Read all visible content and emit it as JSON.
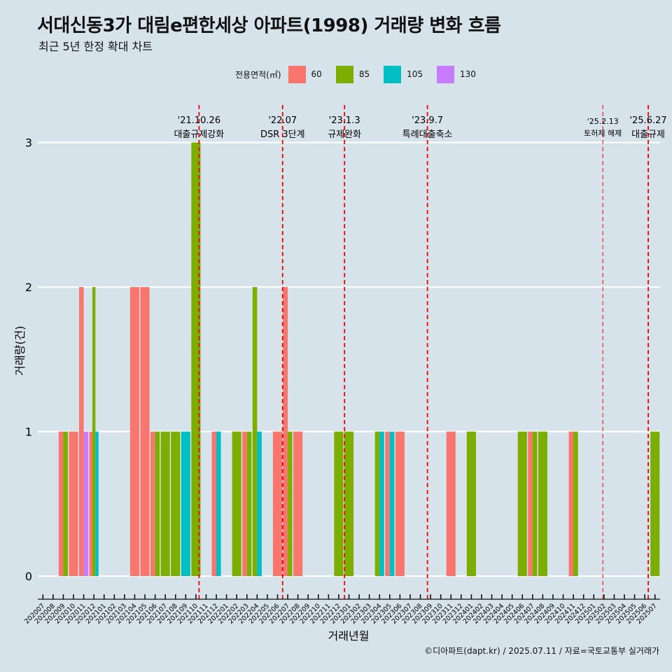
{
  "title": "서대신동3가 대림e편한세상 아파트(1998) 거래량 변화 흐름",
  "subtitle": "최근 5년 한정 확대 차트",
  "caption": "©디아파트(dapt.kr) / 2025.07.11 / 자료=국토교통부 실거래가",
  "legend": {
    "title": "전용면적(㎡)",
    "items": [
      {
        "label": "60",
        "color": "#f8766d"
      },
      {
        "label": "85",
        "color": "#7cae00"
      },
      {
        "label": "105",
        "color": "#00bfc4"
      },
      {
        "label": "130",
        "color": "#c77cff"
      }
    ]
  },
  "chart_data": {
    "type": "bar",
    "xlabel": "거래년월",
    "ylabel": "거래량(건)",
    "ylim": [
      0,
      3
    ],
    "yticks": [
      0,
      1,
      2,
      3
    ],
    "grid": true,
    "legend_position": "top",
    "categories": [
      "202007",
      "202008",
      "202009",
      "202010",
      "202011",
      "202012",
      "202101",
      "202102",
      "202103",
      "202104",
      "202105",
      "202106",
      "202107",
      "202108",
      "202109",
      "202110",
      "202111",
      "202112",
      "202201",
      "202202",
      "202203",
      "202204",
      "202205",
      "202206",
      "202207",
      "202208",
      "202209",
      "202210",
      "202211",
      "202212",
      "202301",
      "202302",
      "202303",
      "202304",
      "202305",
      "202306",
      "202307",
      "202308",
      "202309",
      "202310",
      "202311",
      "202312",
      "202401",
      "202402",
      "202403",
      "202404",
      "202405",
      "202406",
      "202407",
      "202408",
      "202409",
      "202410",
      "202411",
      "202412",
      "202501",
      "202502",
      "202503",
      "202504",
      "202505",
      "202506",
      "202507"
    ],
    "series": [
      {
        "name": "60",
        "color": "#f8766d",
        "values": [
          0,
          0,
          1,
          1,
          2,
          1,
          0,
          0,
          0,
          2,
          2,
          1,
          0,
          0,
          0,
          0,
          0,
          1,
          0,
          0,
          1,
          0,
          0,
          1,
          2,
          1,
          0,
          0,
          0,
          0,
          0,
          0,
          0,
          0,
          1,
          1,
          0,
          0,
          0,
          0,
          1,
          0,
          0,
          0,
          0,
          0,
          0,
          0,
          1,
          0,
          0,
          0,
          1,
          0,
          0,
          0,
          0,
          0,
          0,
          0,
          0
        ]
      },
      {
        "name": "85",
        "color": "#7cae00",
        "values": [
          0,
          0,
          1,
          0,
          0,
          2,
          0,
          0,
          0,
          0,
          0,
          1,
          1,
          1,
          0,
          3,
          0,
          0,
          0,
          1,
          1,
          2,
          0,
          0,
          1,
          0,
          0,
          0,
          0,
          1,
          1,
          0,
          0,
          1,
          0,
          0,
          0,
          0,
          0,
          0,
          0,
          0,
          1,
          0,
          0,
          0,
          0,
          1,
          1,
          1,
          0,
          0,
          1,
          0,
          0,
          0,
          0,
          0,
          0,
          0,
          1
        ]
      },
      {
        "name": "105",
        "color": "#00bfc4",
        "values": [
          0,
          0,
          0,
          0,
          0,
          1,
          0,
          0,
          0,
          0,
          0,
          0,
          0,
          0,
          1,
          0,
          0,
          1,
          0,
          0,
          0,
          1,
          0,
          0,
          0,
          0,
          0,
          0,
          0,
          0,
          0,
          0,
          0,
          1,
          1,
          0,
          0,
          0,
          0,
          0,
          0,
          0,
          0,
          0,
          0,
          0,
          0,
          0,
          0,
          0,
          0,
          0,
          0,
          0,
          0,
          0,
          0,
          0,
          0,
          0,
          0
        ]
      },
      {
        "name": "130",
        "color": "#c77cff",
        "values": [
          0,
          0,
          0,
          0,
          1,
          0,
          0,
          0,
          0,
          0,
          0,
          0,
          0,
          0,
          0,
          0,
          0,
          0,
          0,
          0,
          0,
          0,
          0,
          0,
          0,
          0,
          0,
          0,
          0,
          0,
          0,
          0,
          0,
          0,
          0,
          0,
          0,
          0,
          0,
          0,
          0,
          0,
          0,
          0,
          0,
          0,
          0,
          0,
          0,
          0,
          0,
          0,
          0,
          0,
          0,
          0,
          0,
          0,
          0,
          0,
          0
        ]
      }
    ],
    "annotations": [
      {
        "date": "'21.10.26",
        "label": "대출규제강화",
        "month": "202110",
        "day": 26
      },
      {
        "date": "'22.07",
        "label": "DSR 3단계",
        "month": "202207",
        "day": 1
      },
      {
        "date": "'23.1.3",
        "label": "규제완화",
        "month": "202301",
        "day": 3
      },
      {
        "date": "'23.9.7",
        "label": "특례대출축소",
        "month": "202309",
        "day": 7
      },
      {
        "date": "'25.2.13",
        "label": "토허제 해제",
        "month": "202502",
        "day": 13
      },
      {
        "date": "'25.6.27",
        "label": "대출규제",
        "month": "202506",
        "day": 27
      }
    ]
  }
}
